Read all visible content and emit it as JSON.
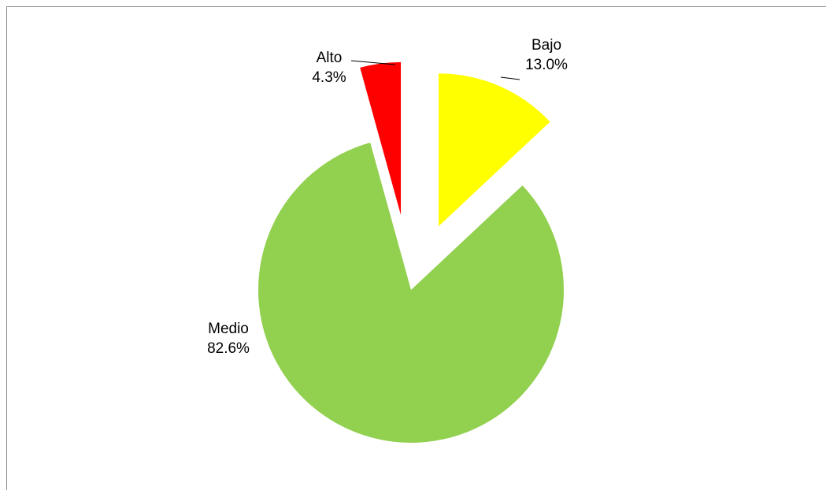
{
  "chart_data": {
    "type": "pie",
    "categories": [
      "Bajo",
      "Medio",
      "Alto"
    ],
    "values": [
      13.0,
      82.6,
      4.3
    ],
    "value_labels": [
      "13.0%",
      "82.6%",
      "4.3%"
    ],
    "colors": [
      "#ffff00",
      "#92d050",
      "#ff0000"
    ]
  }
}
